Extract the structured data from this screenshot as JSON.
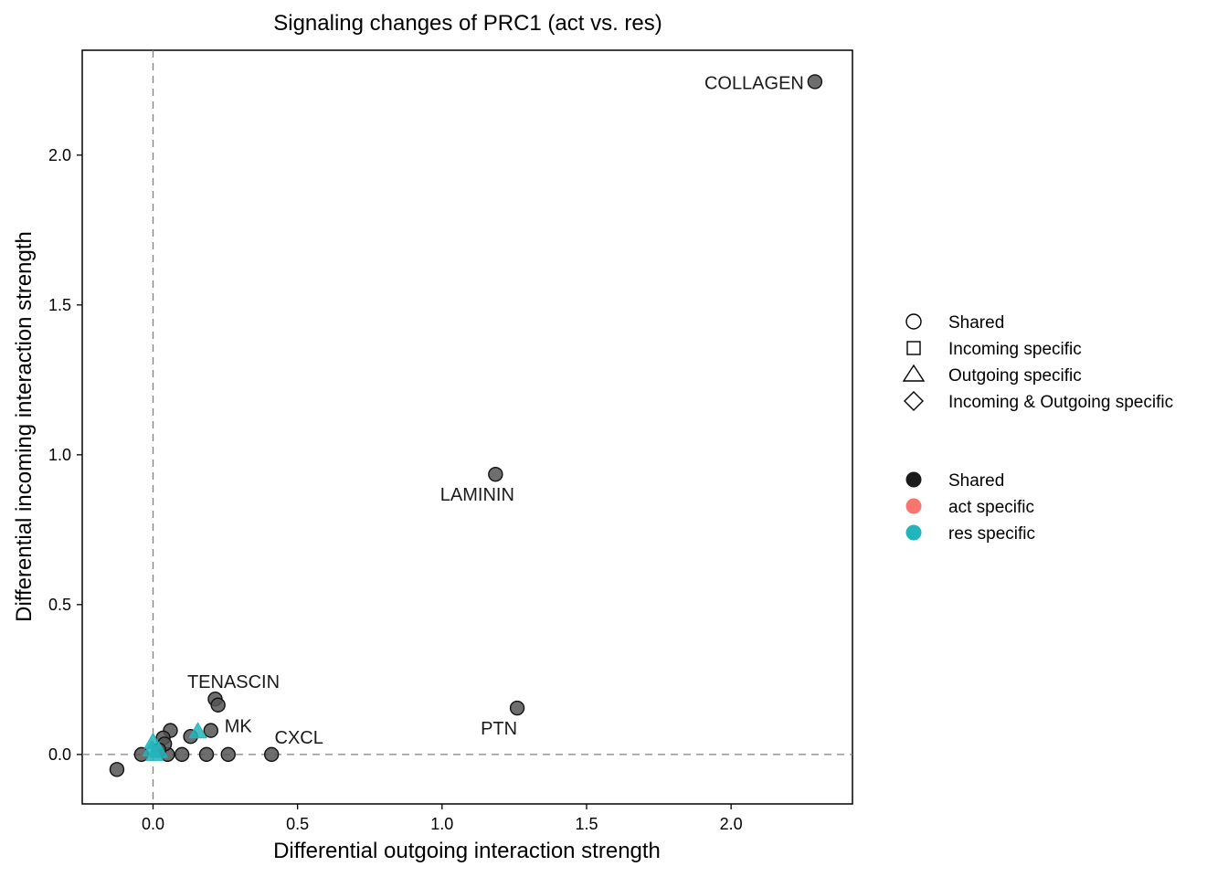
{
  "chart_data": {
    "type": "scatter",
    "title": "Signaling changes of PRC1 (act vs. res)",
    "xlabel": "Differential outgoing interaction strength",
    "ylabel": "Differential incoming interaction strength",
    "xlim": [
      -0.245,
      2.42
    ],
    "ylim": [
      -0.165,
      2.35
    ],
    "xticks": [
      0.0,
      0.5,
      1.0,
      1.5,
      2.0
    ],
    "xtick_labels": [
      "0.0",
      "0.5",
      "1.0",
      "1.5",
      "2.0"
    ],
    "yticks": [
      0.0,
      0.5,
      1.0,
      1.5,
      2.0
    ],
    "ytick_labels": [
      "0.0",
      "0.5",
      "1.0",
      "1.5",
      "2.0"
    ],
    "reference_lines": {
      "x": 0,
      "y": 0,
      "style": "dashed"
    },
    "grid": false,
    "legend_placement": "right",
    "colors": {
      "shared": "#555555",
      "act_specific": "#F8766D",
      "res_specific": "#22B5BB"
    },
    "points": [
      {
        "x": 2.29,
        "y": 2.245,
        "label": "COLLAGEN",
        "shape": "circle",
        "group": "shared"
      },
      {
        "x": 1.185,
        "y": 0.935,
        "label": "LAMININ",
        "shape": "circle",
        "group": "shared"
      },
      {
        "x": 1.26,
        "y": 0.155,
        "label": "PTN",
        "shape": "circle",
        "group": "shared"
      },
      {
        "x": 0.41,
        "y": 0.0,
        "label": "CXCL",
        "shape": "circle",
        "group": "shared"
      },
      {
        "x": 0.215,
        "y": 0.185,
        "label": "TENASCIN",
        "shape": "circle",
        "group": "shared"
      },
      {
        "x": 0.2,
        "y": 0.08,
        "label": "MK",
        "shape": "circle",
        "group": "shared"
      },
      {
        "x": 0.225,
        "y": 0.165,
        "label": "",
        "shape": "circle",
        "group": "shared"
      },
      {
        "x": 0.26,
        "y": 0.0,
        "label": "",
        "shape": "circle",
        "group": "shared"
      },
      {
        "x": 0.185,
        "y": 0.0,
        "label": "",
        "shape": "circle",
        "group": "shared"
      },
      {
        "x": 0.13,
        "y": 0.06,
        "label": "",
        "shape": "circle",
        "group": "shared"
      },
      {
        "x": 0.1,
        "y": 0.0,
        "label": "",
        "shape": "circle",
        "group": "shared"
      },
      {
        "x": 0.06,
        "y": 0.08,
        "label": "",
        "shape": "circle",
        "group": "shared"
      },
      {
        "x": 0.05,
        "y": 0.0,
        "label": "",
        "shape": "circle",
        "group": "shared"
      },
      {
        "x": 0.035,
        "y": 0.055,
        "label": "",
        "shape": "circle",
        "group": "shared"
      },
      {
        "x": 0.04,
        "y": 0.035,
        "label": "",
        "shape": "circle",
        "group": "shared"
      },
      {
        "x": 0.02,
        "y": 0.015,
        "label": "",
        "shape": "circle",
        "group": "shared"
      },
      {
        "x": -0.04,
        "y": 0.0,
        "label": "",
        "shape": "circle",
        "group": "shared"
      },
      {
        "x": -0.125,
        "y": -0.05,
        "label": "",
        "shape": "circle",
        "group": "shared"
      },
      {
        "x": 0.155,
        "y": 0.075,
        "label": "",
        "shape": "triangle",
        "group": "res_specific"
      },
      {
        "x": 0.0,
        "y": 0.04,
        "label": "",
        "shape": "triangle",
        "group": "res_specific"
      },
      {
        "x": 0.005,
        "y": 0.0,
        "label": "",
        "shape": "triangle",
        "group": "res_specific"
      },
      {
        "x": 0.02,
        "y": 0.01,
        "label": "",
        "shape": "triangle",
        "group": "res_specific"
      },
      {
        "x": -0.005,
        "y": 0.015,
        "label": "",
        "shape": "triangle",
        "group": "res_specific"
      }
    ]
  },
  "legend": {
    "shape_items": [
      {
        "label": "Shared",
        "icon": "circle-outline"
      },
      {
        "label": "Incoming specific",
        "icon": "square-outline"
      },
      {
        "label": "Outgoing specific",
        "icon": "triangle-outline"
      },
      {
        "label": "Incoming & Outgoing specific",
        "icon": "diamond-outline"
      }
    ],
    "color_items": [
      {
        "label": "Shared",
        "color": "#1a1a1a"
      },
      {
        "label": "act specific",
        "color": "#F8766D"
      },
      {
        "label": "res specific",
        "color": "#22B5BB"
      }
    ]
  }
}
